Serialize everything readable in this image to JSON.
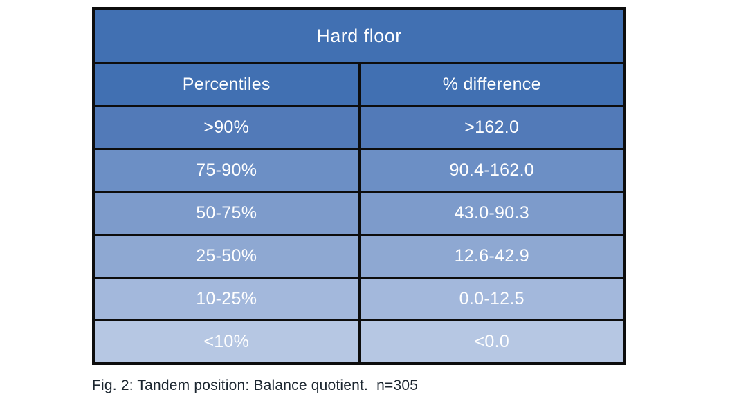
{
  "table": {
    "title": "Hard floor",
    "columns": {
      "percentiles": "Percentiles",
      "difference": "% difference"
    },
    "rows": [
      {
        "percentile": ">90%",
        "difference": ">162.0",
        "bg": "#527ab8"
      },
      {
        "percentile": "75-90%",
        "difference": "90.4-162.0",
        "bg": "#6c8fc5"
      },
      {
        "percentile": "50-75%",
        "difference": "43.0-90.3",
        "bg": "#7d9bcb"
      },
      {
        "percentile": "25-50%",
        "difference": "12.6-42.9",
        "bg": "#8ea8d2"
      },
      {
        "percentile": "10-25%",
        "difference": "0.0-12.5",
        "bg": "#a3b8dc"
      },
      {
        "percentile": "<10%",
        "difference": "<0.0",
        "bg": "#b6c7e3"
      }
    ]
  },
  "caption": "Fig. 2: Tandem position: Balance quotient.  n=305",
  "colors": {
    "header_bg": "#4170b2",
    "border": "#0d0d0d",
    "table_text": "#ffffff",
    "caption_text": "#1c2630"
  },
  "chart_data": {
    "type": "table",
    "title": "Hard floor",
    "columns": [
      "Percentiles",
      "% difference"
    ],
    "rows": [
      [
        ">90%",
        ">162.0"
      ],
      [
        "75-90%",
        "90.4-162.0"
      ],
      [
        "50-75%",
        "43.0-90.3"
      ],
      [
        "25-50%",
        "12.6-42.9"
      ],
      [
        "10-25%",
        "0.0-12.5"
      ],
      [
        "<10%",
        "<0.0"
      ]
    ],
    "caption": "Fig. 2: Tandem position: Balance quotient.  n=305",
    "layout_hints": {
      "row_shading": "blue gradient, darkest at top row to lightest at bottom row",
      "grid": "black 3-4px borders between all cells",
      "text_color": "white"
    }
  }
}
